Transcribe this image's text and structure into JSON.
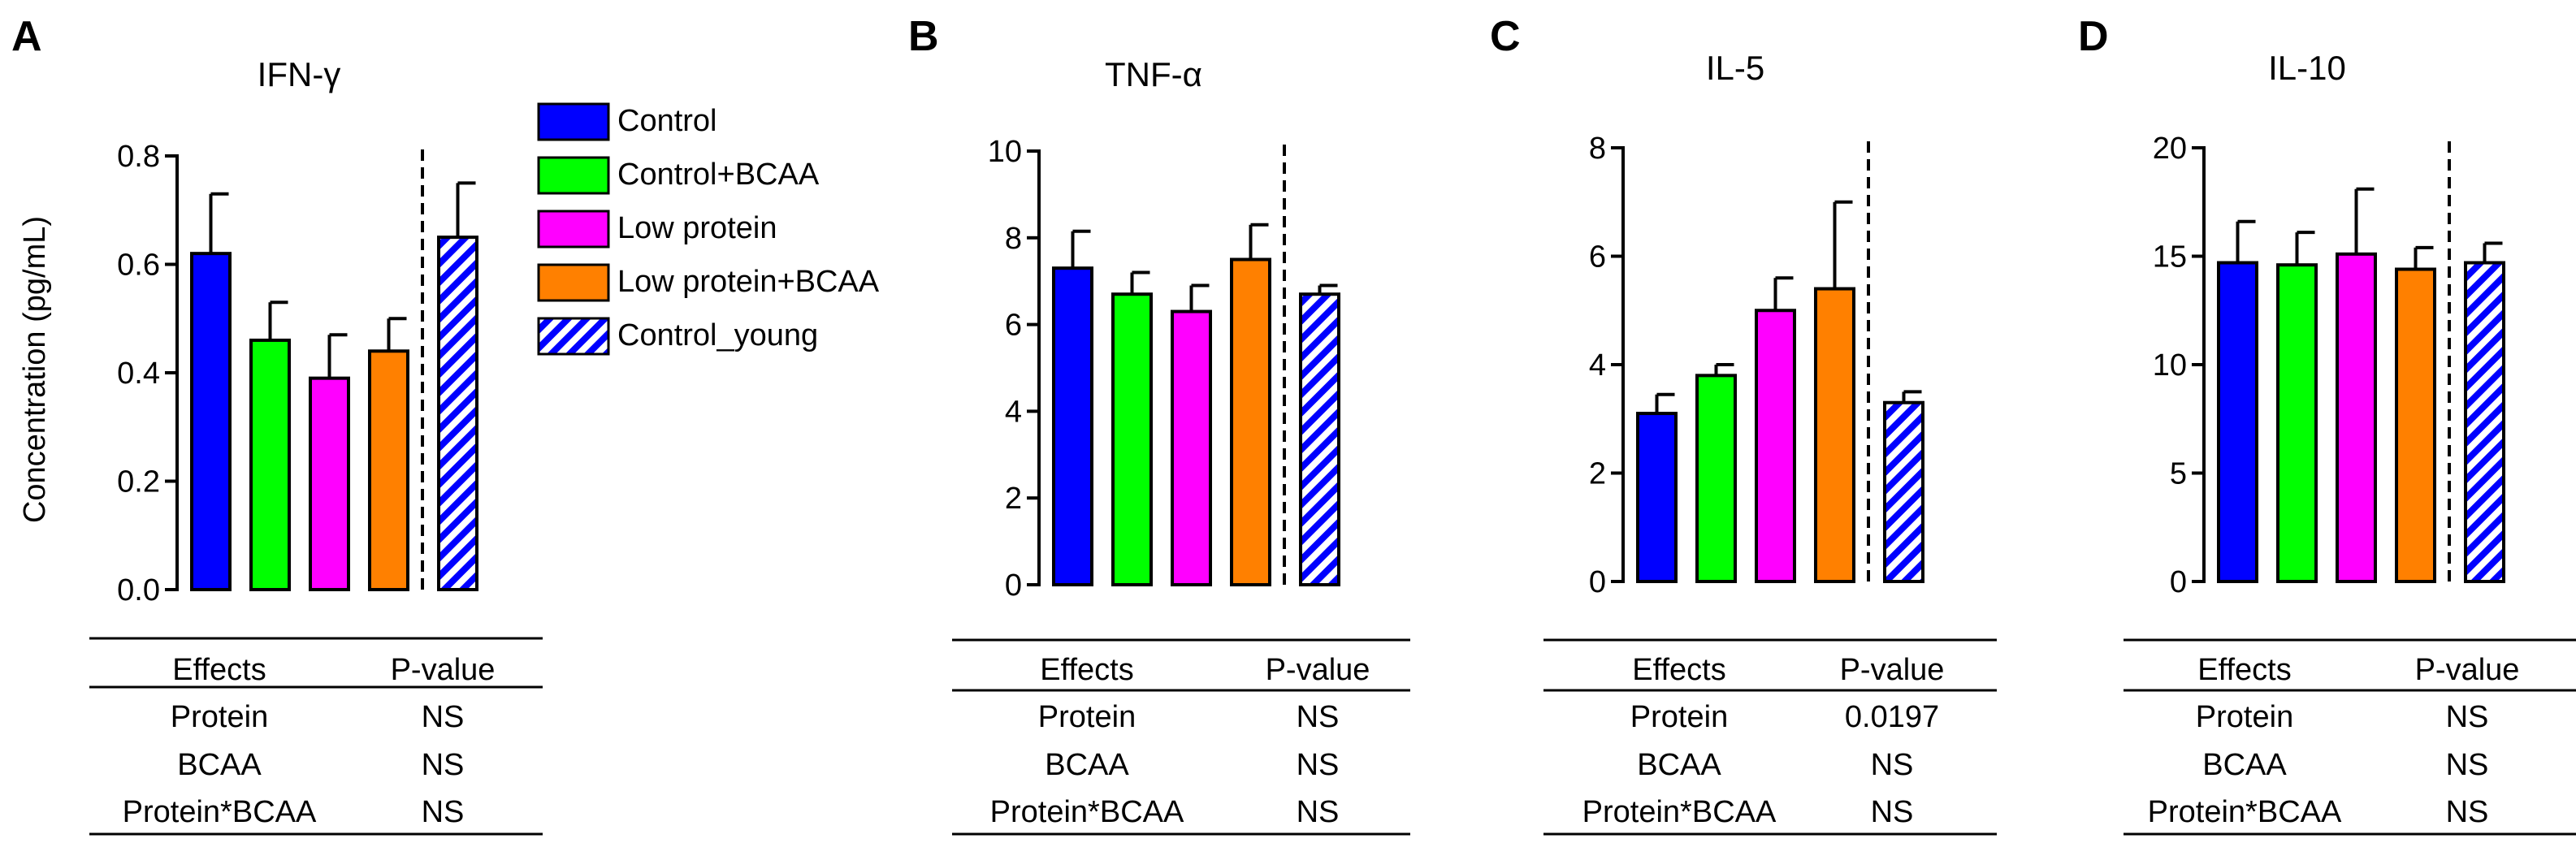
{
  "y_axis_label": "Concentration (pg/mL)",
  "legend": [
    {
      "name": "Control",
      "color": "#0000ff",
      "pattern": "solid"
    },
    {
      "name": "Control+BCAA",
      "color": "#00ff00",
      "pattern": "solid"
    },
    {
      "name": "Low protein",
      "color": "#ff00ff",
      "pattern": "solid"
    },
    {
      "name": "Low protein+BCAA",
      "color": "#ff8000",
      "pattern": "solid"
    },
    {
      "name": "Control_young",
      "color": "#0000ff",
      "pattern": "hatched"
    }
  ],
  "table_header": {
    "effects": "Effects",
    "pvalue": "P-value"
  },
  "chart_data": [
    {
      "panel": "A",
      "type": "bar",
      "title": "IFN-γ",
      "categories": [
        "Control",
        "Control+BCAA",
        "Low protein",
        "Low protein+BCAA",
        "Control_young"
      ],
      "values": [
        0.62,
        0.46,
        0.39,
        0.44,
        0.65
      ],
      "errors": [
        0.11,
        0.07,
        0.08,
        0.06,
        0.1
      ],
      "ylim": [
        0,
        0.8
      ],
      "ticks": [
        "0.0",
        "0.2",
        "0.4",
        "0.6",
        "0.8"
      ],
      "ylabel": "Concentration (pg/mL)",
      "table": [
        {
          "effect": "Protein",
          "p": "NS"
        },
        {
          "effect": "BCAA",
          "p": "NS"
        },
        {
          "effect": "Protein*BCAA",
          "p": "NS"
        }
      ]
    },
    {
      "panel": "B",
      "type": "bar",
      "title": "TNF-α",
      "categories": [
        "Control",
        "Control+BCAA",
        "Low protein",
        "Low protein+BCAA",
        "Control_young"
      ],
      "values": [
        7.3,
        6.7,
        6.3,
        7.5,
        6.7
      ],
      "errors": [
        0.85,
        0.5,
        0.6,
        0.8,
        0.2
      ],
      "ylim": [
        0,
        10
      ],
      "ticks": [
        "0",
        "2",
        "4",
        "6",
        "8",
        "10"
      ],
      "ylabel": "",
      "table": [
        {
          "effect": "Protein",
          "p": "NS"
        },
        {
          "effect": "BCAA",
          "p": "NS"
        },
        {
          "effect": "Protein*BCAA",
          "p": "NS"
        }
      ]
    },
    {
      "panel": "C",
      "type": "bar",
      "title": "IL-5",
      "categories": [
        "Control",
        "Control+BCAA",
        "Low protein",
        "Low protein+BCAA",
        "Control_young"
      ],
      "values": [
        3.1,
        3.8,
        5.0,
        5.4,
        3.3
      ],
      "errors": [
        0.35,
        0.2,
        0.6,
        1.6,
        0.2
      ],
      "ylim": [
        0,
        8
      ],
      "ticks": [
        "0",
        "2",
        "4",
        "6",
        "8"
      ],
      "ylabel": "",
      "table": [
        {
          "effect": "Protein",
          "p": "0.0197"
        },
        {
          "effect": "BCAA",
          "p": "NS"
        },
        {
          "effect": "Protein*BCAA",
          "p": "NS"
        }
      ]
    },
    {
      "panel": "D",
      "type": "bar",
      "title": "IL-10",
      "categories": [
        "Control",
        "Control+BCAA",
        "Low protein",
        "Low protein+BCAA",
        "Control_young"
      ],
      "values": [
        14.7,
        14.6,
        15.1,
        14.4,
        14.7
      ],
      "errors": [
        1.9,
        1.5,
        3.0,
        1.0,
        0.9
      ],
      "ylim": [
        0,
        20
      ],
      "ticks": [
        "0",
        "5",
        "10",
        "15",
        "20"
      ],
      "ylabel": "",
      "table": [
        {
          "effect": "Protein",
          "p": "NS"
        },
        {
          "effect": "BCAA",
          "p": "NS"
        },
        {
          "effect": "Protein*BCAA",
          "p": "NS"
        }
      ]
    }
  ]
}
